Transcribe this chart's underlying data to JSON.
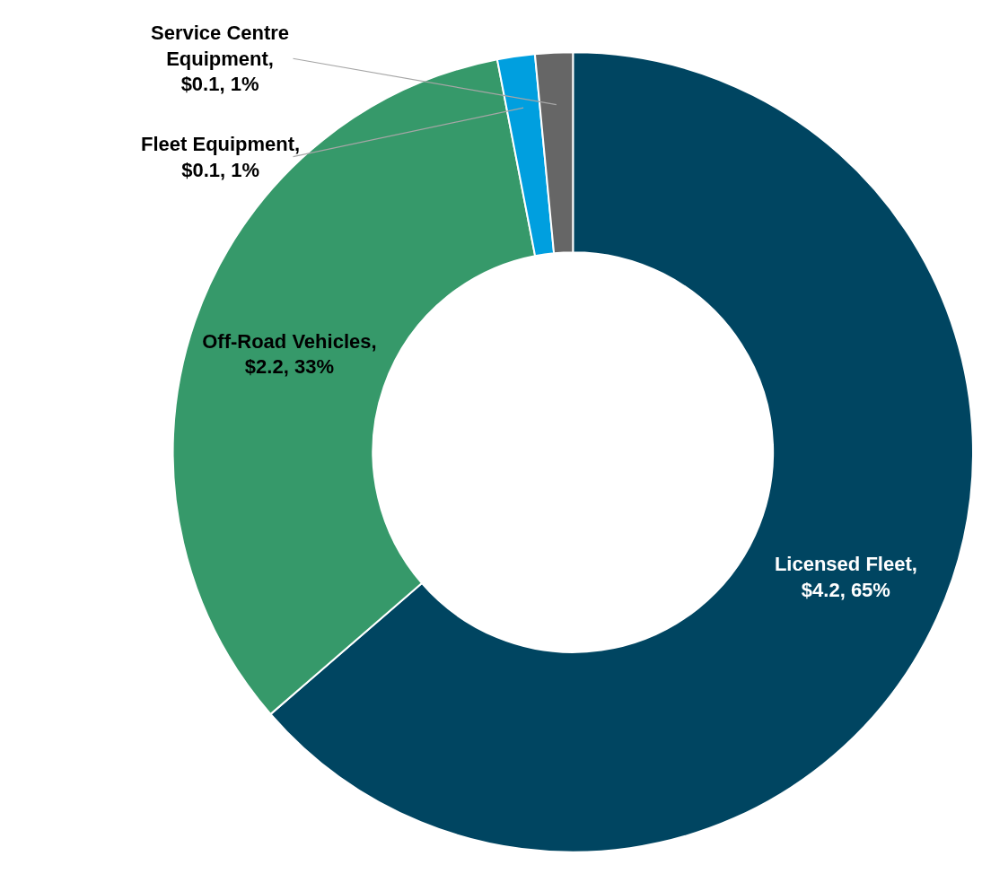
{
  "chart_data": {
    "type": "donut",
    "categories": [
      "Licensed Fleet",
      "Off-Road Vehicles",
      "Fleet Equipment",
      "Service Centre Equipment"
    ],
    "values": [
      4.2,
      2.2,
      0.1,
      0.1
    ],
    "value_labels": [
      ", $4.2, 65%",
      ", $2.2, 33%",
      ", $0.1, 1%",
      ", $0.1, 1%"
    ],
    "colors": [
      "#004561",
      "#36996a",
      "#009fdf",
      "#666666"
    ],
    "legend": false
  }
}
